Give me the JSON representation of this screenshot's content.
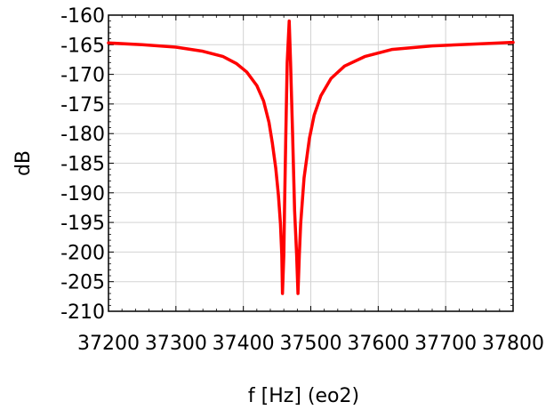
{
  "chart_data": {
    "type": "line",
    "title": "",
    "xlabel": "f [Hz] (eo2)",
    "ylabel": "dB",
    "xlim": [
      37200,
      37800
    ],
    "ylim": [
      -210,
      -160
    ],
    "grid": true,
    "legend": "none",
    "x_ticks": [
      37200,
      37300,
      37400,
      37500,
      37600,
      37700,
      37800
    ],
    "x_tick_labels": [
      "37200",
      "37300",
      "37400",
      "37500",
      "37600",
      "37700",
      "37800"
    ],
    "y_ticks": [
      -160,
      -165,
      -170,
      -175,
      -180,
      -185,
      -190,
      -195,
      -200,
      -205,
      -210
    ],
    "y_tick_labels": [
      "-160",
      "-165",
      "-170",
      "-175",
      "-180",
      "-185",
      "-190",
      "-195",
      "-200",
      "-205",
      "-210"
    ],
    "series": [
      {
        "color": "#ff0000",
        "x": [
          37200,
          37250,
          37300,
          37340,
          37370,
          37390,
          37405,
          37420,
          37430,
          37438,
          37443,
          37448,
          37452,
          37455,
          37457,
          37458,
          37460,
          37461,
          37463,
          37465,
          37468,
          37470,
          37473,
          37476,
          37479,
          37481,
          37483,
          37485,
          37490,
          37498,
          37505,
          37515,
          37530,
          37550,
          37580,
          37620,
          37680,
          37740,
          37800
        ],
        "y": [
          -164.7,
          -165.0,
          -165.4,
          -166.1,
          -167.0,
          -168.2,
          -169.6,
          -171.9,
          -174.5,
          -178.1,
          -181.6,
          -185.8,
          -190.4,
          -195.2,
          -200.5,
          -207.0,
          -200.5,
          -193.0,
          -180.0,
          -168.0,
          -161.0,
          -168.0,
          -180.0,
          -193.0,
          -200.5,
          -207.0,
          -200.5,
          -195.2,
          -187.5,
          -180.8,
          -176.9,
          -173.6,
          -170.7,
          -168.6,
          -167.0,
          -165.8,
          -165.2,
          -164.9,
          -164.6
        ]
      }
    ]
  }
}
